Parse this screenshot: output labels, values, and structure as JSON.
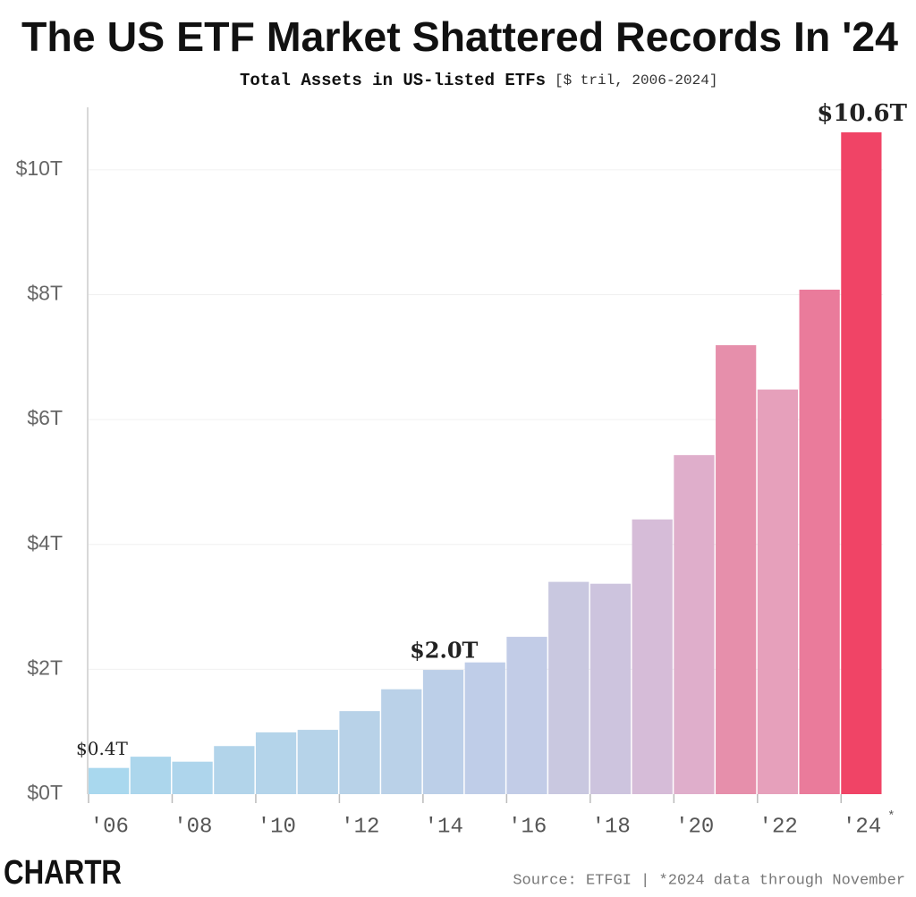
{
  "chart_data": {
    "type": "bar",
    "title": "The US ETF Market Shattered Records In '24",
    "subtitle": "Total Assets in US-listed ETFs",
    "subtitle_note": "[$ tril, 2006-2024]",
    "categories": [
      "'06",
      null,
      "'08",
      null,
      "'10",
      null,
      "'12",
      null,
      "'14",
      null,
      "'16",
      null,
      "'18",
      null,
      "'20",
      null,
      "'22",
      null,
      "'24"
    ],
    "category_note": "*",
    "values": [
      0.42,
      0.6,
      0.52,
      0.77,
      0.99,
      1.03,
      1.33,
      1.68,
      1.99,
      2.11,
      2.52,
      3.4,
      3.37,
      4.4,
      5.43,
      7.19,
      6.48,
      8.08,
      10.6
    ],
    "value_labels": [
      "$0.4T",
      null,
      null,
      null,
      null,
      null,
      null,
      null,
      "$2.0T",
      null,
      null,
      null,
      null,
      null,
      null,
      null,
      null,
      null,
      "$10.6T"
    ],
    "colors": [
      "#a9d8ee",
      "#acd6ec",
      "#aed5ec",
      "#b2d4ea",
      "#b4d4ea",
      "#b6d3e9",
      "#b8d2e8",
      "#bad1e8",
      "#bccfe8",
      "#bfcde8",
      "#c2cce7",
      "#c9c8e0",
      "#cdc4de",
      "#d6bcd8",
      "#dfaecb",
      "#e68fab",
      "#e6a0bb",
      "#ea7b9b",
      "#f04466"
    ],
    "ylim": [
      0,
      11
    ],
    "yticks": [
      {
        "value": 0,
        "label": "$0T"
      },
      {
        "value": 2,
        "label": "$2T"
      },
      {
        "value": 4,
        "label": "$4T"
      },
      {
        "value": 6,
        "label": "$6T"
      },
      {
        "value": 8,
        "label": "$8T"
      },
      {
        "value": 10,
        "label": "$10T"
      }
    ],
    "grid": true,
    "source": "Source: ETFGI | *2024 data through November",
    "logo": "CHARTR"
  }
}
